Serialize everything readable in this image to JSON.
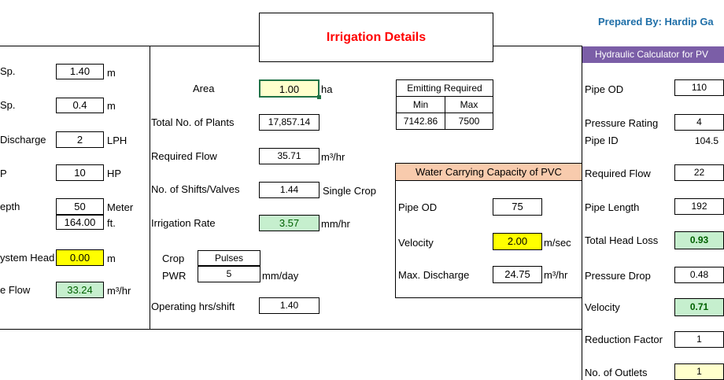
{
  "header": {
    "title": "Irrigation Details",
    "prepared_by": "Prepared By: Hardip Ga",
    "hydraulic_title": "Hydraulic Calculator for PV"
  },
  "left": {
    "row1": {
      "label": "Sp.",
      "value": "1.40",
      "unit": "m"
    },
    "row2": {
      "label": "Sp.",
      "value": "0.4",
      "unit": "m"
    },
    "row3": {
      "label": "Discharge",
      "value": "2",
      "unit": "LPH"
    },
    "row4": {
      "label": "P",
      "value": "10",
      "unit": "HP"
    },
    "row5": {
      "label": "epth",
      "value": "50",
      "unit": "Meter",
      "value2": "164.00",
      "unit2": "ft."
    },
    "row6": {
      "label": "ystem Head",
      "value": "0.00",
      "unit": "m"
    },
    "row7": {
      "label": "e Flow",
      "value": "33.24",
      "unit": "m³/hr"
    }
  },
  "middle": {
    "area": {
      "label": "Area",
      "value": "1.00",
      "unit": "ha"
    },
    "plants": {
      "label": "Total No. of Plants",
      "value": "17,857.14"
    },
    "flow": {
      "label": "Required Flow",
      "value": "35.71",
      "unit": "m³/hr"
    },
    "shifts": {
      "label": "No. of Shifts/Valves",
      "value": "1.44",
      "unit": "Single Crop"
    },
    "irr_rate": {
      "label": "Irrigation Rate",
      "value": "3.57",
      "unit": "mm/hr"
    },
    "crop": {
      "label": "Crop",
      "value": "Pulses"
    },
    "pwr": {
      "label": "PWR",
      "value": "5",
      "unit": "mm/day"
    },
    "op_hrs": {
      "label": "Operating hrs/shift",
      "value": "1.40"
    }
  },
  "emitting": {
    "title": "Emitting Required",
    "min_label": "Min",
    "max_label": "Max",
    "min": "7142.86",
    "max": "7500"
  },
  "water": {
    "title": "Water Carrying Capacity of PVC",
    "pipe_od": {
      "label": "Pipe OD",
      "value": "75"
    },
    "velocity": {
      "label": "Velocity",
      "value": "2.00",
      "unit": "m/sec"
    },
    "max_discharge": {
      "label": "Max. Discharge",
      "value": "24.75",
      "unit": "m³/hr"
    }
  },
  "hydraulic": {
    "pipe_od": {
      "label": "Pipe OD",
      "value": "110"
    },
    "pressure_rating": {
      "label": "Pressure Rating",
      "value": "4"
    },
    "pipe_id": {
      "label": "Pipe ID",
      "value": "104.5"
    },
    "required_flow": {
      "label": "Required Flow",
      "value": "22"
    },
    "pipe_length": {
      "label": "Pipe Length",
      "value": "192"
    },
    "total_head_loss": {
      "label": "Total Head Loss",
      "value": "0.93"
    },
    "pressure_drop": {
      "label": "Pressure Drop",
      "value": "0.48"
    },
    "velocity": {
      "label": "Velocity",
      "value": "0.71"
    },
    "reduction_factor": {
      "label": "Reduction Factor",
      "value": "1"
    },
    "outlets": {
      "label": "No. of Outlets",
      "value": "1"
    }
  },
  "colors": {
    "title_red": "#ff0000",
    "prepared_blue": "#1f6fa8",
    "hydraulic_header": "#7b5ea7",
    "water_header": "#f8cbad",
    "input_yellow": "#ffff00",
    "calc_green": "#c6efce"
  }
}
